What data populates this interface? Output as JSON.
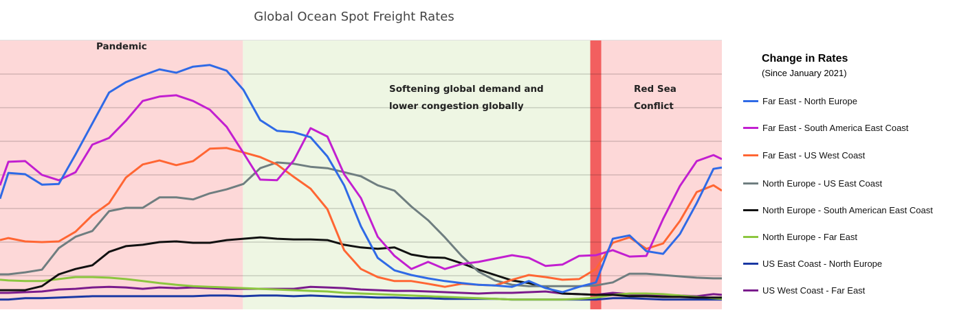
{
  "chart_data": {
    "type": "line",
    "title": "Global Ocean Spot Freight Rates",
    "xlabel": "",
    "ylabel": "",
    "ylim": [
      0,
      80
    ],
    "xlim": [
      0,
      43
    ],
    "grid": true,
    "legend_placement": "right",
    "legend_title": "Change in Rates",
    "legend_subtitle": "(Since January 2021)",
    "x": [
      0,
      0.5,
      1.5,
      2.5,
      3.5,
      4.5,
      5.5,
      6.5,
      7.5,
      8.5,
      9.5,
      10.5,
      11.5,
      12.5,
      13.5,
      14.5,
      15.5,
      16.5,
      17.5,
      18.5,
      19.5,
      20.5,
      21.5,
      22.5,
      23.5,
      24.5,
      25.5,
      26.5,
      27.5,
      28.5,
      29.5,
      30.5,
      31.5,
      32.5,
      33.5,
      34.5,
      35.5,
      36.5,
      37.5,
      38.5,
      39.5,
      40.5,
      41.5,
      42.5,
      43
    ],
    "regions": [
      {
        "label": "Pandemic",
        "from": 0,
        "to": 14.47,
        "color": "#fdd8d8"
      },
      {
        "label": "Softening global demand and lower congestion globally",
        "label_lines": [
          "Softening global demand and",
          "lower congestion globally"
        ],
        "from": 14.47,
        "to": 35.16,
        "color": "#eef6e3"
      },
      {
        "label": "",
        "from": 35.16,
        "to": 35.82,
        "color": "#f25f5f"
      },
      {
        "label": "Red Sea Conflict",
        "label_lines": [
          "Red Sea",
          "Conflict"
        ],
        "from": 35.82,
        "to": 43,
        "color": "#fdd8d8"
      }
    ],
    "series": [
      {
        "name": "Far East - North Europe",
        "color": "#2f6ae6",
        "values": [
          32.9,
          40.6,
          40.2,
          37.1,
          37.3,
          46.1,
          55.3,
          64.5,
          67.6,
          69.6,
          71.4,
          70.4,
          72.2,
          72.7,
          71.0,
          65.3,
          56.3,
          53.1,
          52.7,
          51.2,
          45.5,
          36.9,
          24.7,
          15.3,
          11.6,
          10.2,
          9.2,
          8.4,
          7.8,
          7.3,
          7.1,
          6.7,
          8.4,
          6.3,
          5.1,
          6.7,
          8.0,
          21.0,
          22.0,
          17.3,
          16.5,
          22.4,
          31.6,
          41.8,
          42.2
        ]
      },
      {
        "name": "Far East - South America East Coast",
        "color": "#c21fd0",
        "values": [
          36.9,
          43.9,
          44.1,
          40.0,
          38.4,
          40.8,
          49.0,
          51.0,
          56.1,
          62.0,
          63.3,
          63.7,
          62.0,
          59.4,
          54.3,
          46.5,
          38.6,
          38.4,
          44.3,
          53.9,
          51.4,
          40.2,
          33.1,
          21.6,
          15.9,
          12.0,
          14.1,
          12.0,
          13.5,
          14.1,
          15.1,
          16.1,
          15.3,
          12.9,
          13.3,
          15.9,
          16.1,
          17.6,
          15.7,
          15.9,
          26.9,
          36.7,
          44.1,
          45.9,
          44.7
        ]
      },
      {
        "name": "Far East - US West Coast",
        "color": "#ff6633",
        "values": [
          20.6,
          21.2,
          20.2,
          20.0,
          20.2,
          23.1,
          28.0,
          31.6,
          39.2,
          43.1,
          44.3,
          42.9,
          44.1,
          47.8,
          48.0,
          46.7,
          45.3,
          43.1,
          39.4,
          35.9,
          29.8,
          17.6,
          12.0,
          9.6,
          8.4,
          8.4,
          7.6,
          6.7,
          7.6,
          7.3,
          7.1,
          8.8,
          10.2,
          9.6,
          8.8,
          9.0,
          12.0,
          19.8,
          21.4,
          18.0,
          19.6,
          26.3,
          34.9,
          36.9,
          35.3
        ]
      },
      {
        "name": "North Europe - US East Coast",
        "color": "#6f7e80",
        "values": [
          10.4,
          10.4,
          11.0,
          11.8,
          18.2,
          21.6,
          23.3,
          29.2,
          30.2,
          30.2,
          33.3,
          33.3,
          32.7,
          34.5,
          35.7,
          37.3,
          42.0,
          43.7,
          43.3,
          42.4,
          42.0,
          40.8,
          39.6,
          36.9,
          35.3,
          30.6,
          26.5,
          21.4,
          15.9,
          11.2,
          8.6,
          7.3,
          6.9,
          6.9,
          6.9,
          6.9,
          7.1,
          8.0,
          10.6,
          10.6,
          10.2,
          9.8,
          9.4,
          9.2,
          9.2
        ]
      },
      {
        "name": "North Europe - South American East Coast",
        "color": "#111111",
        "values": [
          5.7,
          5.7,
          5.7,
          6.9,
          10.4,
          12.0,
          13.1,
          17.1,
          18.8,
          19.2,
          20.0,
          20.2,
          19.8,
          19.8,
          20.6,
          21.0,
          21.4,
          21.0,
          20.8,
          20.8,
          20.6,
          19.2,
          18.4,
          18.0,
          18.4,
          16.3,
          15.5,
          15.3,
          13.7,
          11.8,
          10.2,
          8.6,
          7.8,
          6.5,
          4.7,
          4.5,
          4.3,
          4.3,
          3.9,
          3.9,
          3.7,
          3.7,
          3.5,
          3.5,
          3.5
        ]
      },
      {
        "name": "North Europe - Far East",
        "color": "#8cc63f",
        "values": [
          8.8,
          8.6,
          8.4,
          8.4,
          9.0,
          9.6,
          9.6,
          9.4,
          9.0,
          8.4,
          7.8,
          7.3,
          6.9,
          6.7,
          6.5,
          6.3,
          6.1,
          5.9,
          5.7,
          5.5,
          5.3,
          4.9,
          4.7,
          4.5,
          4.3,
          4.1,
          3.9,
          3.7,
          3.5,
          3.3,
          3.1,
          2.9,
          2.9,
          2.9,
          2.9,
          3.1,
          3.5,
          4.3,
          4.7,
          4.7,
          4.5,
          4.1,
          3.7,
          3.3,
          3.1
        ]
      },
      {
        "name": "US East Coast - North Europe",
        "color": "#1a38a3",
        "values": [
          2.9,
          2.9,
          3.3,
          3.3,
          3.5,
          3.7,
          3.9,
          3.9,
          3.9,
          3.9,
          3.9,
          3.9,
          3.9,
          4.1,
          4.1,
          3.9,
          4.1,
          4.1,
          3.9,
          4.1,
          3.9,
          3.7,
          3.7,
          3.5,
          3.5,
          3.3,
          3.3,
          3.1,
          3.1,
          3.1,
          3.1,
          2.9,
          2.9,
          2.9,
          2.9,
          2.9,
          2.9,
          3.3,
          3.3,
          3.1,
          2.9,
          2.9,
          2.9,
          2.9,
          2.9
        ]
      },
      {
        "name": "US West Coast - Far East",
        "color": "#7a1b8c",
        "values": [
          4.9,
          4.9,
          5.1,
          5.3,
          5.9,
          6.1,
          6.5,
          6.7,
          6.5,
          6.1,
          6.5,
          6.3,
          6.5,
          6.3,
          6.1,
          6.1,
          6.1,
          6.1,
          6.1,
          6.7,
          6.5,
          6.3,
          5.9,
          5.7,
          5.5,
          5.5,
          5.3,
          5.1,
          4.9,
          4.7,
          4.9,
          4.9,
          5.1,
          5.3,
          4.7,
          4.5,
          4.3,
          4.9,
          4.5,
          4.3,
          4.3,
          4.1,
          3.9,
          4.5,
          4.3
        ]
      }
    ]
  }
}
